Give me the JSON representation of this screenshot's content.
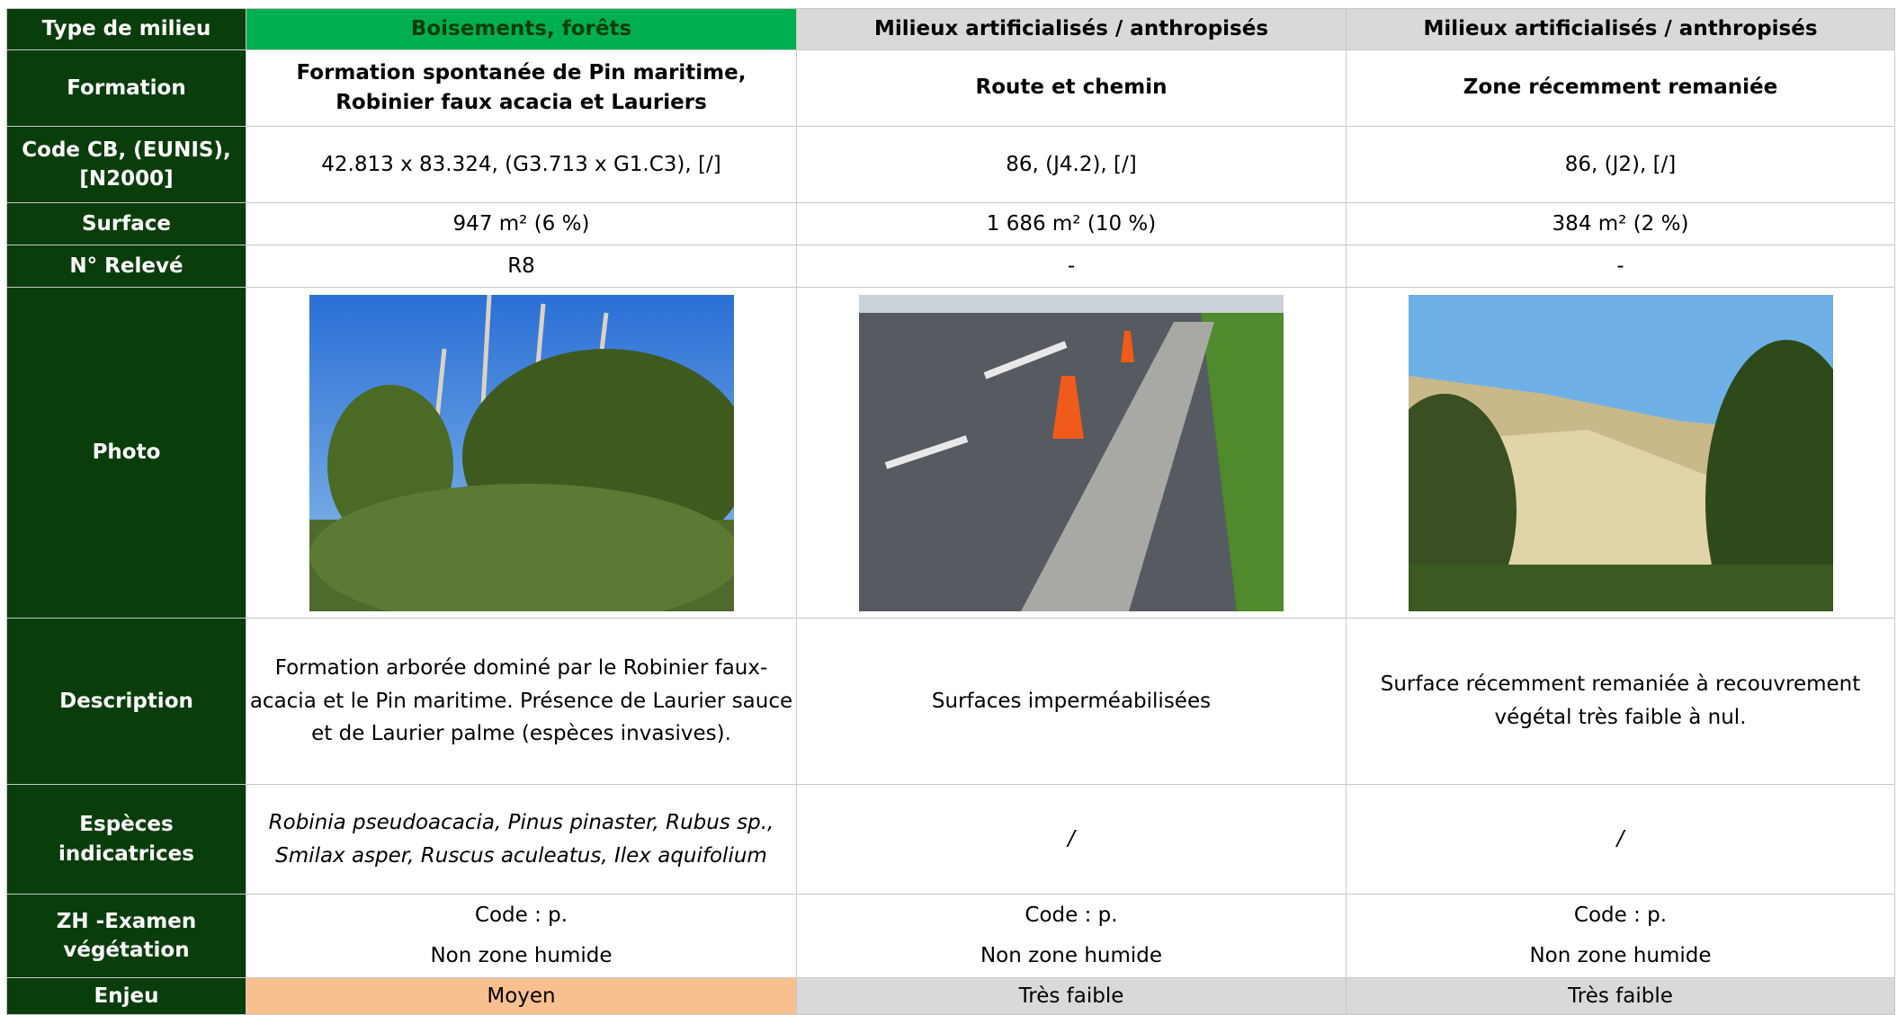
{
  "table": {
    "rows": [
      {
        "label": "Type de milieu",
        "cells": [
          "Boisements, forêts",
          "Milieux artificialisés / anthropisés",
          "Milieux artificialisés / anthropisés"
        ]
      },
      {
        "label": "Formation",
        "cells": [
          "Formation spontanée de Pin maritime, Robinier faux acacia et Lauriers",
          "Route et chemin",
          "Zone récemment remaniée"
        ]
      },
      {
        "label": "Code CB, (EUNIS), [N2000]",
        "cells": [
          "42.813 x 83.324, (G3.713 x G1.C3), [/]",
          "86, (J4.2), [/]",
          "86, (J2), [/]"
        ]
      },
      {
        "label": "Surface",
        "cells": [
          "947 m² (6 %)",
          "1 686 m² (10 %)",
          "384 m² (2 %)"
        ]
      },
      {
        "label": "N° Relevé",
        "cells": [
          "R8",
          "-",
          "-"
        ]
      },
      {
        "label": "Photo"
      },
      {
        "label": "Description",
        "cells": [
          "Formation arborée dominé par le Robinier faux-acacia et le Pin maritime. Présence de Laurier sauce et de Laurier palme (espèces invasives).",
          "Surfaces imperméabilisées",
          "Surface récemment remaniée à recouvrement végétal très faible à nul."
        ]
      },
      {
        "label": "Espèces indicatrices",
        "cells": [
          "Robinia pseudoacacia, Pinus pinaster, Rubus sp., Smilax asper, Ruscus aculeatus, Ilex aquifolium",
          "/",
          "/"
        ]
      },
      {
        "label": "ZH -Examen végétation",
        "cells": [
          [
            "Code : p.",
            "Non zone humide"
          ],
          [
            "Code : p.",
            "Non zone humide"
          ],
          [
            "Code : p.",
            "Non zone humide"
          ]
        ]
      },
      {
        "label": "Enjeu",
        "cells": [
          "Moyen",
          "Très faible",
          "Très faible"
        ]
      }
    ]
  }
}
